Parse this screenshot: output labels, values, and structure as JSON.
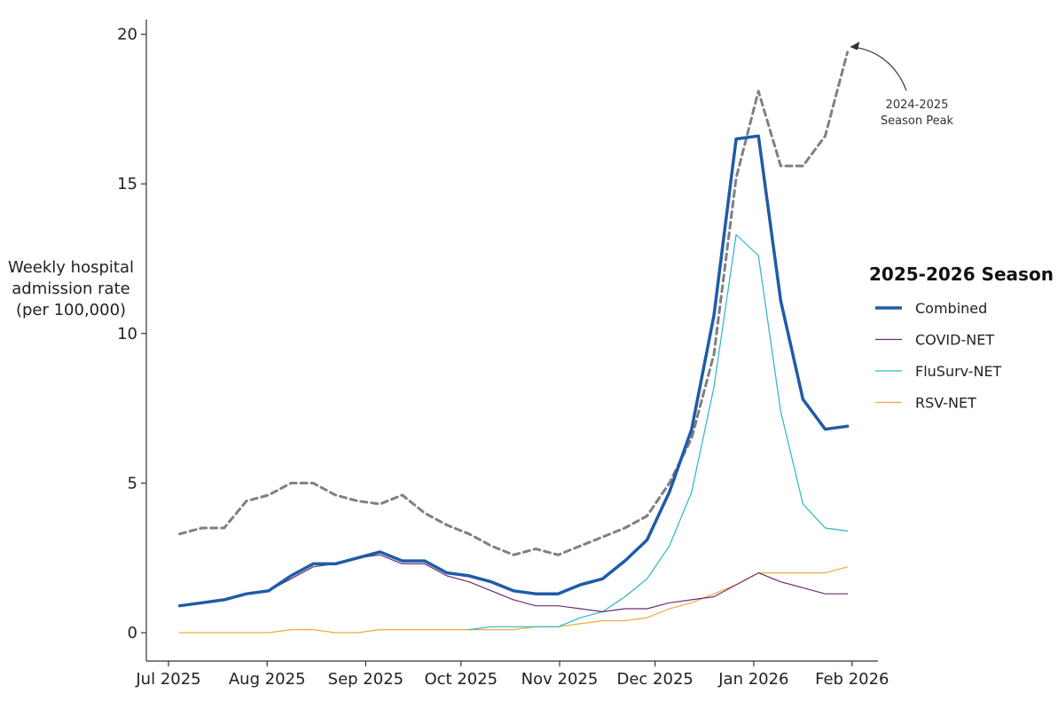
{
  "chart_data": {
    "type": "line",
    "ylabel": [
      "Weekly hospital",
      "admission rate",
      "(per 100,000)"
    ],
    "ylim": [
      0,
      20.5
    ],
    "yticks": [
      0,
      5,
      10,
      15,
      20
    ],
    "x_ticks": [
      {
        "label": "Jul 2025",
        "week": 0
      },
      {
        "label": "Aug 2025",
        "week": 4.43
      },
      {
        "label": "Sep 2025",
        "week": 8.86
      },
      {
        "label": "Oct 2025",
        "week": 13.14
      },
      {
        "label": "Nov 2025",
        "week": 17.57
      },
      {
        "label": "Dec 2025",
        "week": 21.86
      },
      {
        "label": "Jan 2026",
        "week": 26.29
      },
      {
        "label": "Feb 2026",
        "week": 30.71
      }
    ],
    "x_weeks": [
      1,
      2,
      3,
      4,
      5,
      6,
      7,
      8,
      9,
      10,
      11,
      12,
      13,
      14,
      15,
      16,
      17,
      18,
      19,
      20,
      21,
      22,
      23,
      24,
      25,
      26,
      27,
      28,
      29,
      30,
      31
    ],
    "legend": {
      "title": "2025-2026 Season",
      "position": "right"
    },
    "series": [
      {
        "name": "Combined",
        "color": "#1f5ba8",
        "width": 3.5,
        "dash": "",
        "values": [
          0.9,
          1.0,
          1.1,
          1.3,
          1.4,
          1.9,
          2.3,
          2.3,
          2.5,
          2.7,
          2.4,
          2.4,
          2.0,
          1.9,
          1.7,
          1.4,
          1.3,
          1.3,
          1.6,
          1.8,
          2.4,
          3.1,
          4.7,
          6.8,
          10.6,
          16.5,
          16.6,
          11.1,
          7.8,
          6.8,
          6.9
        ],
        "in_legend": true
      },
      {
        "name": "COVID-NET",
        "color": "#6a2e6e",
        "width": 1.2,
        "dash": "",
        "values": [
          0.9,
          1.0,
          1.1,
          1.3,
          1.4,
          1.8,
          2.2,
          2.3,
          2.5,
          2.6,
          2.3,
          2.3,
          1.9,
          1.7,
          1.4,
          1.1,
          0.9,
          0.9,
          0.8,
          0.7,
          0.8,
          0.8,
          1.0,
          1.1,
          1.2,
          1.6,
          2.0,
          1.7,
          1.5,
          1.3,
          1.3
        ],
        "in_legend": true
      },
      {
        "name": "FluSurv-NET",
        "color": "#28b6c6",
        "width": 1.2,
        "dash": "",
        "start_week": 14,
        "values": [
          0.1,
          0.2,
          0.2,
          0.2,
          0.2,
          0.5,
          0.7,
          1.2,
          1.8,
          2.9,
          4.7,
          8.2,
          13.3,
          12.6,
          7.4,
          4.3,
          3.5,
          3.4
        ],
        "in_legend": true
      },
      {
        "name": "RSV-NET",
        "color": "#f2a93b",
        "width": 1.2,
        "dash": "",
        "values": [
          0.0,
          0.0,
          0.0,
          0.0,
          0.0,
          0.1,
          0.1,
          0.0,
          0.0,
          0.1,
          0.1,
          0.1,
          0.1,
          0.1,
          0.1,
          0.1,
          0.2,
          0.2,
          0.3,
          0.4,
          0.4,
          0.5,
          0.8,
          1.0,
          1.3,
          1.6,
          2.0,
          2.0,
          2.0,
          2.0,
          2.2
        ],
        "in_legend": true
      },
      {
        "name": "",
        "color": "#808080",
        "width": 3,
        "dash": "7,5",
        "values": [
          3.3,
          3.5,
          3.5,
          4.4,
          4.6,
          5.0,
          5.0,
          4.6,
          4.4,
          4.3,
          4.6,
          4.0,
          3.6,
          3.3,
          2.9,
          2.6,
          2.8,
          2.6,
          2.9,
          3.2,
          3.5,
          3.9,
          5.0,
          6.5,
          9.3,
          15.2,
          18.1,
          15.6,
          15.6,
          16.6,
          19.4
        ],
        "in_legend": false
      }
    ],
    "annotation": {
      "lines": [
        "2024-2025",
        "Season Peak"
      ],
      "points_to_week": 31,
      "points_to_value": 19.4
    }
  }
}
